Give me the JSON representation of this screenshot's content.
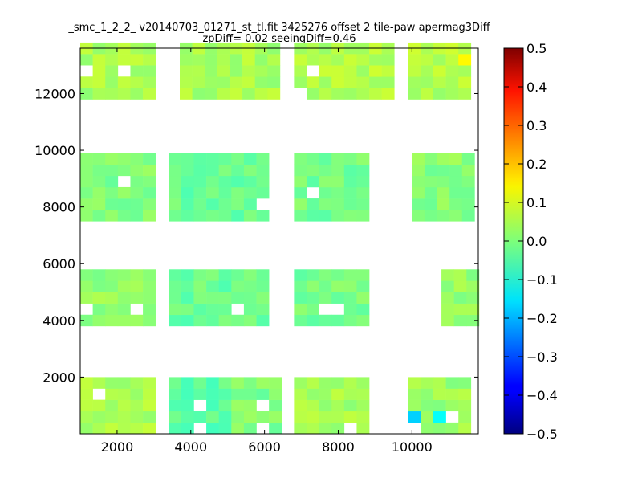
{
  "chart_data": {
    "type": "heatmap",
    "title_line1": "_smc_1_2_2_ v20140703_01271_st_tl.fit 3425276 offset 2 tile-paw apermag3Diff",
    "title_line2": "zpDiff= 0.02 seeingDiff=0.46",
    "xlabel": "",
    "ylabel": "",
    "xlim": [
      1000,
      11800
    ],
    "ylim": [
      0,
      13600
    ],
    "xticks": [
      2000,
      4000,
      6000,
      8000,
      10000
    ],
    "yticks": [
      2000,
      4000,
      6000,
      8000,
      10000,
      12000
    ],
    "colorbar": {
      "colormap": "jet",
      "range": [
        -0.5,
        0.5
      ],
      "ticks": [
        "0.5",
        "0.4",
        "0.3",
        "0.2",
        "0.1",
        "0.0",
        "−0.1",
        "−0.2",
        "−0.3",
        "−0.4",
        "−0.5"
      ]
    },
    "cell_size": [
      340,
      400
    ],
    "grid": false,
    "legend": "none",
    "blocks": [
      {
        "x": [
          1000,
          3000
        ],
        "y": [
          0,
          2100
        ],
        "value": 0.04
      },
      {
        "x": [
          3400,
          5100
        ],
        "y": [
          0,
          2100
        ],
        "value": -0.03
      },
      {
        "x": [
          5100,
          6500
        ],
        "y": [
          0,
          2100
        ],
        "value": 0.0
      },
      {
        "x": [
          6800,
          8800
        ],
        "y": [
          0,
          2100
        ],
        "value": 0.04
      },
      {
        "x": [
          9900,
          11700
        ],
        "y": [
          0,
          2100
        ],
        "value": 0.03
      },
      {
        "x": [
          1000,
          3000
        ],
        "y": [
          3800,
          5900
        ],
        "value": 0.02
      },
      {
        "x": [
          3400,
          6100
        ],
        "y": [
          3800,
          5900
        ],
        "value": -0.02
      },
      {
        "x": [
          6800,
          9000
        ],
        "y": [
          3800,
          5900
        ],
        "value": -0.01
      },
      {
        "x": [
          10800,
          11700
        ],
        "y": [
          3800,
          5900
        ],
        "value": 0.02
      },
      {
        "x": [
          1000,
          3000
        ],
        "y": [
          7500,
          9800
        ],
        "value": 0.0
      },
      {
        "x": [
          3400,
          6100
        ],
        "y": [
          7500,
          9800
        ],
        "value": -0.02
      },
      {
        "x": [
          6800,
          8800
        ],
        "y": [
          7500,
          9800
        ],
        "value": -0.01
      },
      {
        "x": [
          10000,
          11700
        ],
        "y": [
          7500,
          9800
        ],
        "value": 0.01
      },
      {
        "x": [
          1000,
          3000
        ],
        "y": [
          11800,
          13600
        ],
        "value": 0.04
      },
      {
        "x": [
          3700,
          6500
        ],
        "y": [
          11800,
          13600
        ],
        "value": 0.04
      },
      {
        "x": [
          6800,
          9500
        ],
        "y": [
          11800,
          13600
        ],
        "value": 0.05
      },
      {
        "x": [
          9900,
          11700
        ],
        "y": [
          11800,
          13600
        ],
        "value": 0.05
      }
    ],
    "holes": [
      [
        1050,
        12700
      ],
      [
        2050,
        12950
      ],
      [
        3350,
        13500
      ],
      [
        3400,
        13150
      ],
      [
        6750,
        13150
      ],
      [
        7400,
        12750
      ],
      [
        7050,
        11950
      ],
      [
        2050,
        8700
      ],
      [
        7400,
        8500
      ],
      [
        8800,
        8500
      ],
      [
        5850,
        8100
      ],
      [
        1050,
        4500
      ],
      [
        2400,
        4500
      ],
      [
        5400,
        4500
      ],
      [
        7800,
        4500
      ],
      [
        8050,
        4500
      ],
      [
        10700,
        4500
      ],
      [
        1400,
        1200
      ],
      [
        6100,
        800
      ],
      [
        6100,
        200
      ],
      [
        8400,
        200
      ],
      [
        9000,
        550
      ],
      [
        9950,
        200
      ],
      [
        4400,
        200
      ],
      [
        4400,
        800
      ],
      [
        11050,
        600
      ]
    ],
    "special": [
      {
        "x": 9700,
        "y": 200,
        "value": -0.05
      },
      {
        "x": 9950,
        "y": 600,
        "value": -0.17
      },
      {
        "x": 10700,
        "y": 600,
        "value": -0.12
      },
      {
        "x": 11600,
        "y": 600,
        "value": -0.16
      },
      {
        "x": 8800,
        "y": 600,
        "value": -0.08
      },
      {
        "x": 11350,
        "y": 13000,
        "value": 0.13
      },
      {
        "x": 3150,
        "y": 13350,
        "value": -0.05
      }
    ]
  }
}
